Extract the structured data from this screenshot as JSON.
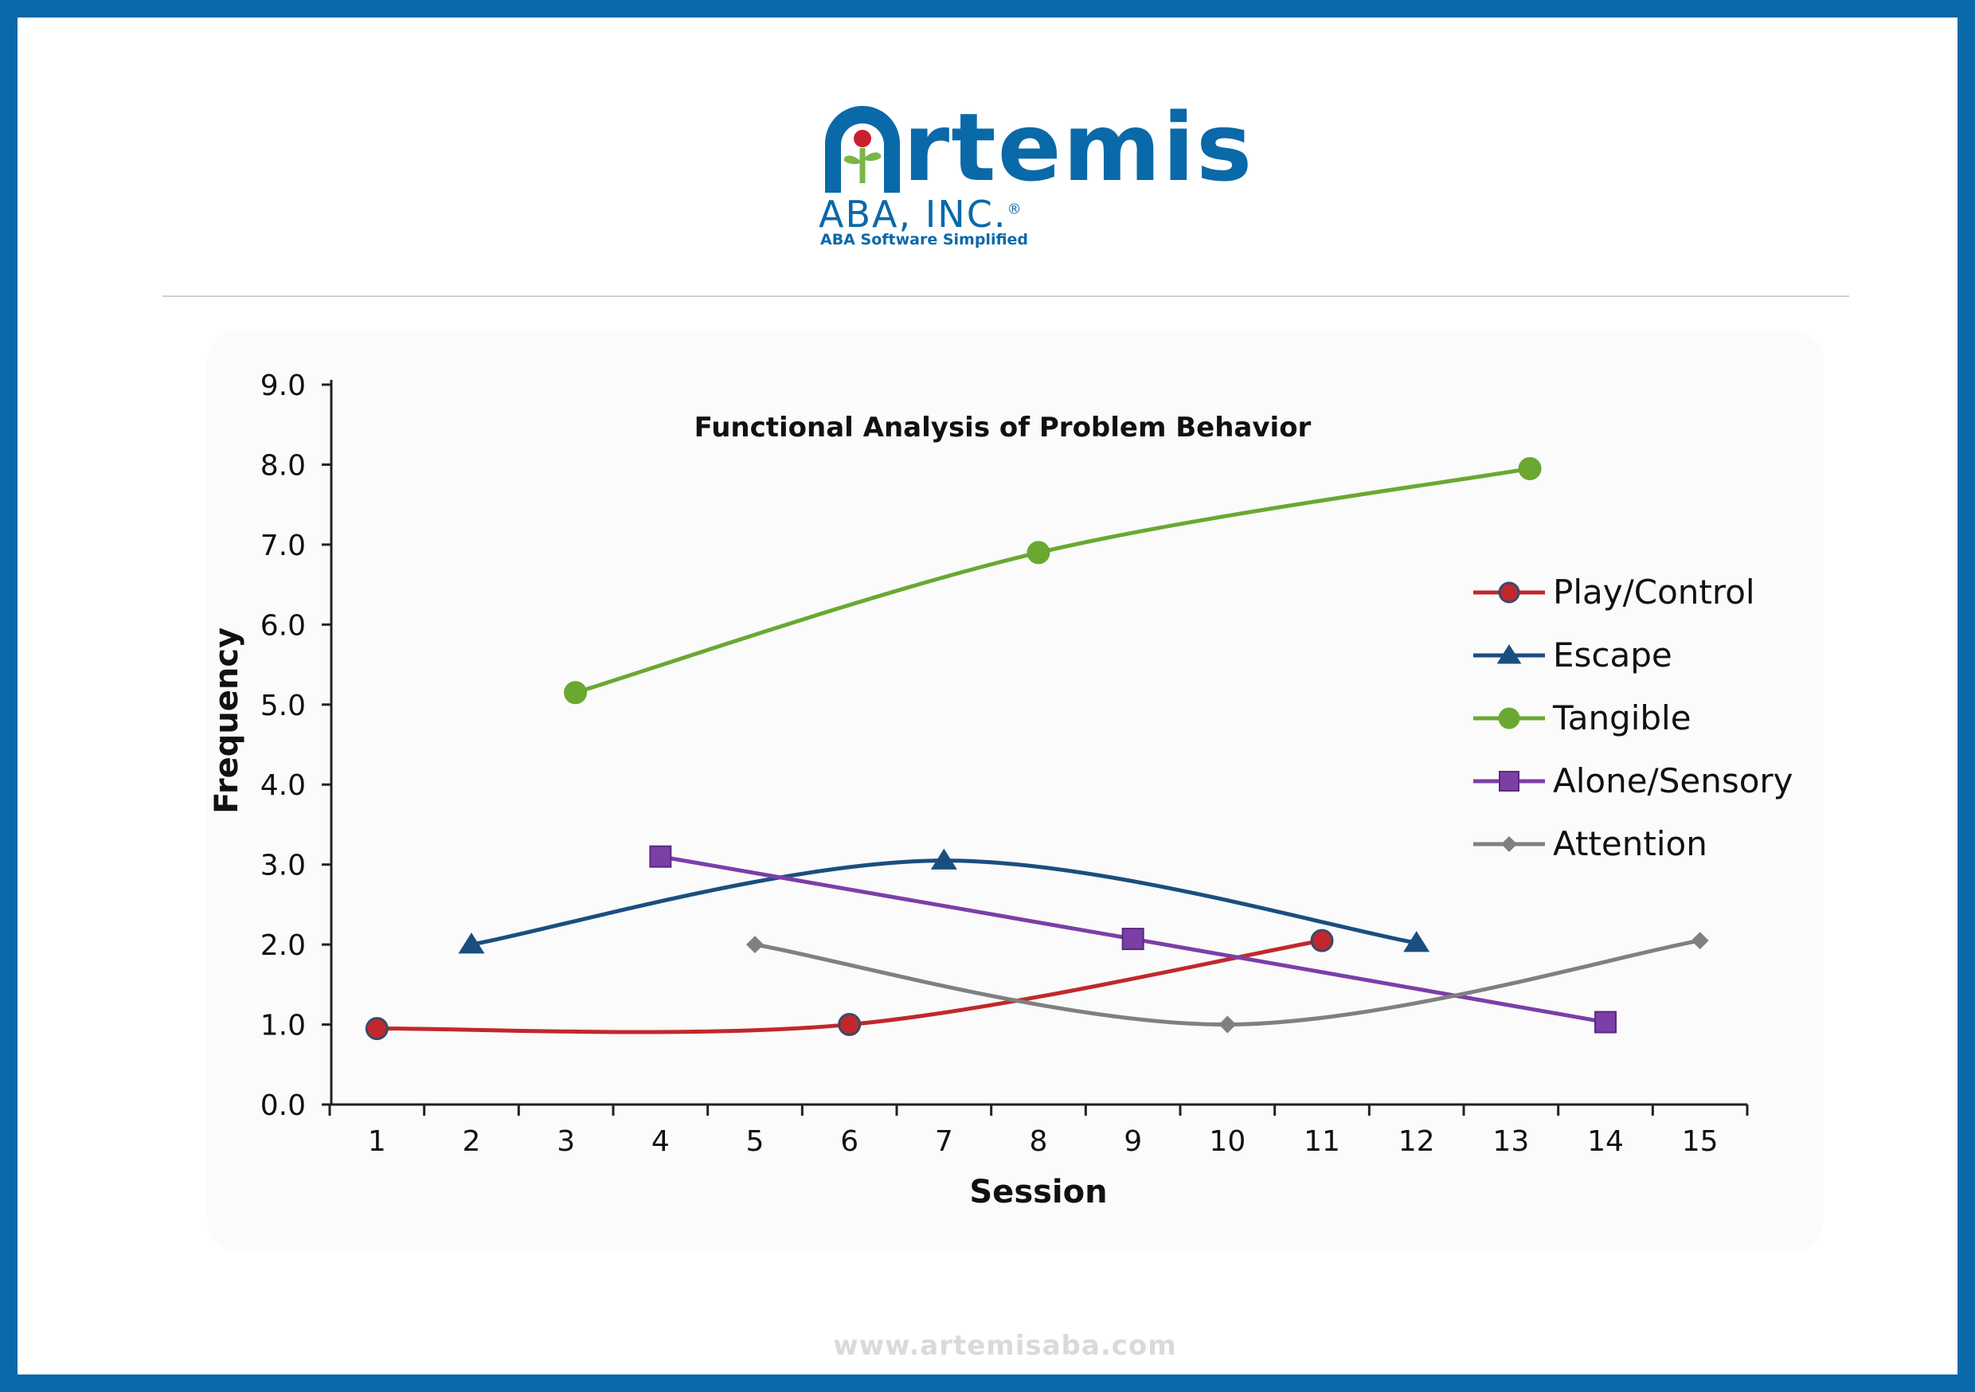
{
  "brand": {
    "name": "Artemis",
    "subtitle": "ABA, INC.",
    "registered": "®",
    "tagline": "ABA Software Simplified",
    "website": "www.artemisaba.com",
    "colors": {
      "primary": "#0a69a8",
      "leaf": "#7ab648",
      "dot": "#c8202f"
    }
  },
  "chart_data": {
    "type": "line",
    "title": "Functional Analysis of Problem Behavior",
    "xlabel": "Session",
    "ylabel": "Frequency",
    "xlim": [
      0.5,
      15.5
    ],
    "ylim": [
      0,
      9
    ],
    "x_ticks": [
      "1",
      "2",
      "3",
      "4",
      "5",
      "6",
      "7",
      "8",
      "9",
      "10",
      "11",
      "12",
      "13",
      "14",
      "15"
    ],
    "y_ticks": [
      "0.0",
      "1.0",
      "2.0",
      "3.0",
      "4.0",
      "5.0",
      "6.0",
      "7.0",
      "8.0",
      "9.0"
    ],
    "legend_position": "right",
    "grid": false,
    "series": [
      {
        "name": "Play/Control",
        "color": "#c0282d",
        "marker": "circle",
        "points": [
          [
            1,
            0.95
          ],
          [
            6,
            1.0
          ],
          [
            11,
            2.05
          ]
        ]
      },
      {
        "name": "Escape",
        "color": "#1b4e7e",
        "marker": "triangle",
        "points": [
          [
            2,
            2.0
          ],
          [
            7,
            3.05
          ],
          [
            12,
            2.02
          ]
        ]
      },
      {
        "name": "Tangible",
        "color": "#6aa832",
        "marker": "circle",
        "points": [
          [
            3.1,
            5.15
          ],
          [
            8,
            6.9
          ],
          [
            13.2,
            7.95
          ]
        ]
      },
      {
        "name": "Alone/Sensory",
        "color": "#7b3fa6",
        "marker": "square",
        "points": [
          [
            4,
            3.1
          ],
          [
            9,
            2.07
          ],
          [
            14,
            1.03
          ]
        ]
      },
      {
        "name": "Attention",
        "color": "#808080",
        "marker": "diamond",
        "points": [
          [
            5,
            2.0
          ],
          [
            10,
            1.0
          ],
          [
            15,
            2.05
          ]
        ]
      }
    ]
  }
}
